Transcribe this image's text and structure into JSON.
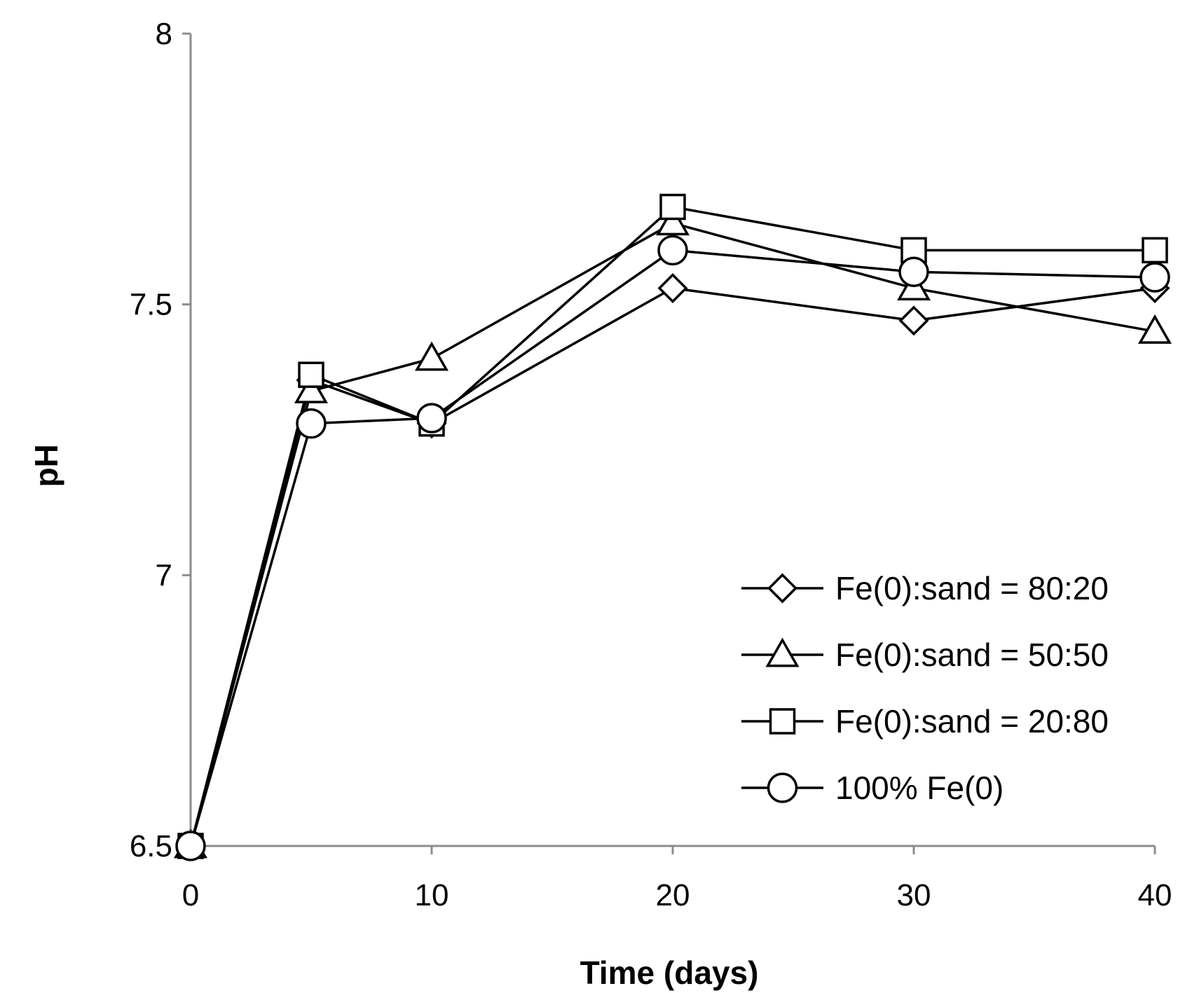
{
  "chart_data": {
    "type": "line",
    "title": "",
    "xlabel": "Time (days)",
    "ylabel": "pH",
    "xlim": [
      0,
      40
    ],
    "ylim": [
      6.5,
      8
    ],
    "xticks": [
      0,
      10,
      20,
      30,
      40
    ],
    "xtick_labels": [
      "0",
      "10",
      "20",
      "30",
      "40"
    ],
    "yticks": [
      6.5,
      7,
      7.5,
      8
    ],
    "ytick_labels": [
      "6.5",
      "7",
      "7.5",
      "8"
    ],
    "grid": false,
    "legend_position": "bottom-right",
    "x": [
      0,
      5,
      10,
      20,
      30,
      40
    ],
    "series": [
      {
        "name": "Fe(0):sand = 80:20",
        "marker": "diamond",
        "values": [
          6.5,
          7.36,
          7.28,
          7.53,
          7.47,
          7.53
        ]
      },
      {
        "name": "Fe(0):sand = 50:50",
        "marker": "triangle",
        "values": [
          6.5,
          7.34,
          7.4,
          7.65,
          7.53,
          7.45
        ]
      },
      {
        "name": "Fe(0):sand = 20:80",
        "marker": "square",
        "values": [
          6.5,
          7.37,
          7.28,
          7.68,
          7.6,
          7.6
        ]
      },
      {
        "name": "100% Fe(0)",
        "marker": "circle",
        "values": [
          6.5,
          7.28,
          7.29,
          7.6,
          7.56,
          7.55
        ]
      }
    ]
  }
}
